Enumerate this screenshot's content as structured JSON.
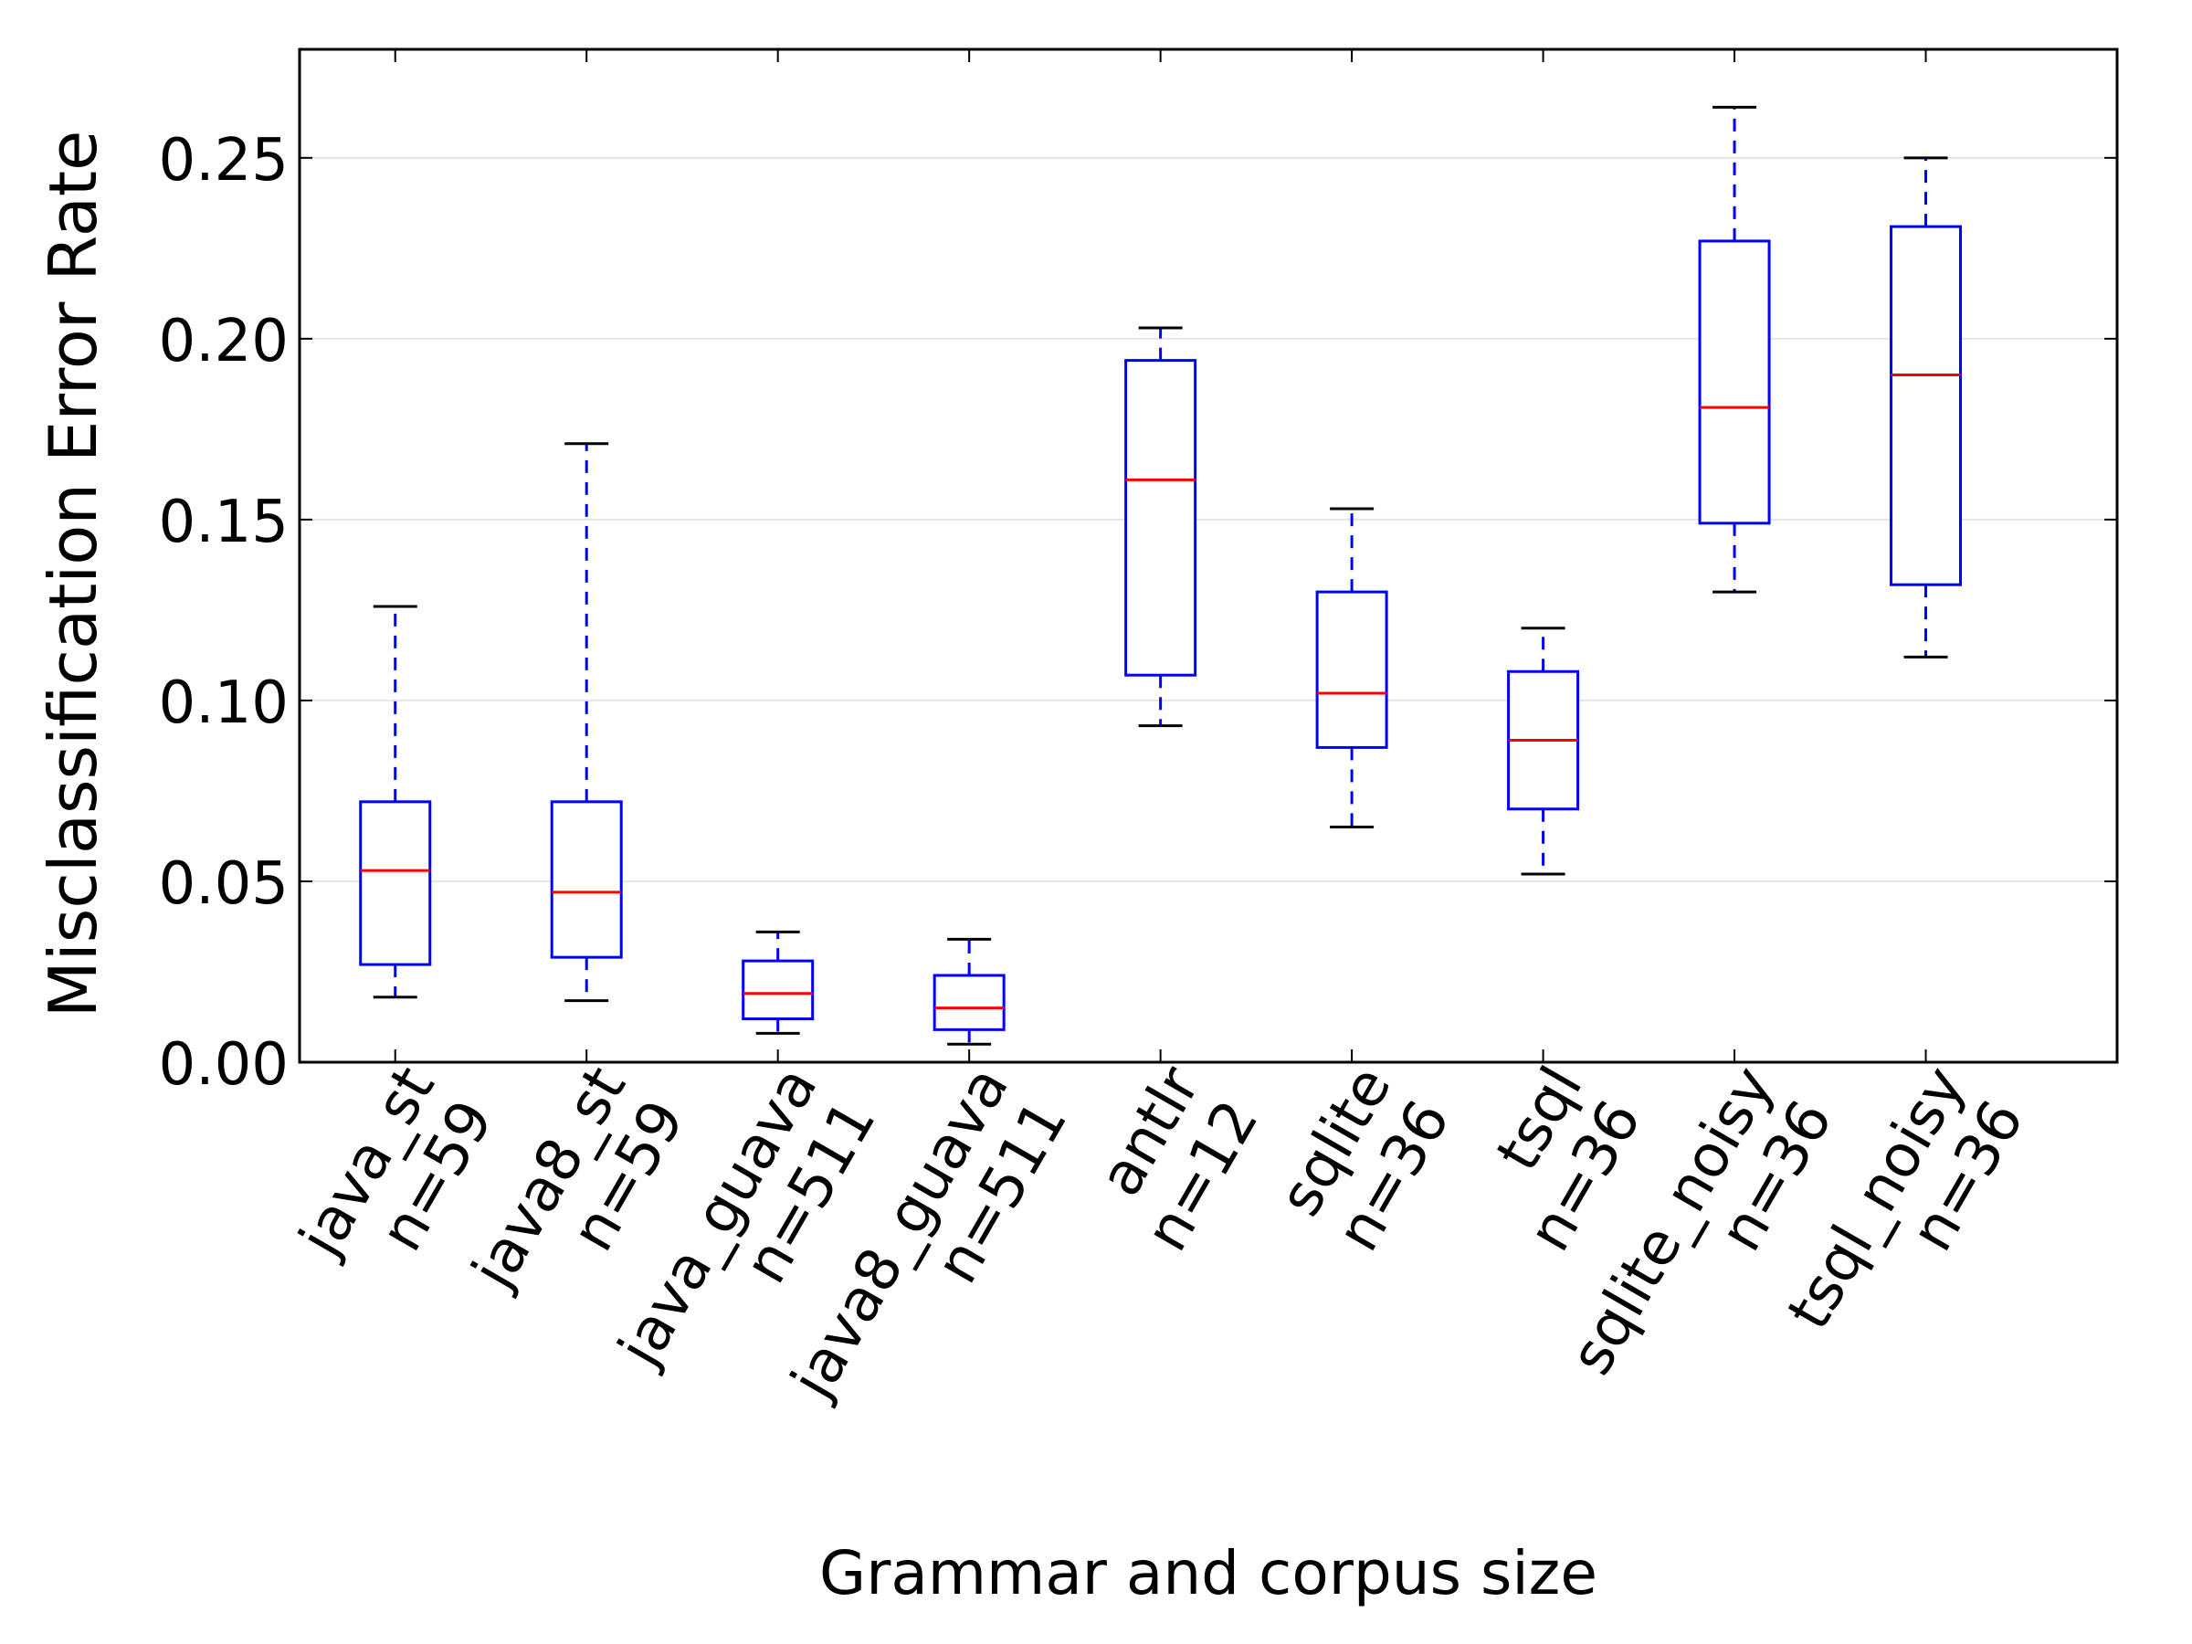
{
  "chart_data": {
    "type": "box",
    "title": "",
    "xlabel": "Grammar and corpus size",
    "ylabel": "Misclassification Error Rate",
    "ylim": [
      0,
      0.28
    ],
    "yticks": [
      0.0,
      0.05,
      0.1,
      0.15,
      0.2,
      0.25
    ],
    "ytick_labels": [
      "0.00",
      "0.05",
      "0.10",
      "0.15",
      "0.20",
      "0.25"
    ],
    "grid": "horizontal",
    "categories": [
      {
        "name": "java_st",
        "n_label": "n=59",
        "whisker_low": 0.018,
        "q1": 0.027,
        "median": 0.053,
        "q3": 0.072,
        "whisker_high": 0.126
      },
      {
        "name": "java8_st",
        "n_label": "n=59",
        "whisker_low": 0.017,
        "q1": 0.029,
        "median": 0.047,
        "q3": 0.072,
        "whisker_high": 0.171
      },
      {
        "name": "java_guava",
        "n_label": "n=511",
        "whisker_low": 0.008,
        "q1": 0.012,
        "median": 0.019,
        "q3": 0.028,
        "whisker_high": 0.036
      },
      {
        "name": "java8_guava",
        "n_label": "n=511",
        "whisker_low": 0.005,
        "q1": 0.009,
        "median": 0.015,
        "q3": 0.024,
        "whisker_high": 0.034
      },
      {
        "name": "antlr",
        "n_label": "n=12",
        "whisker_low": 0.093,
        "q1": 0.107,
        "median": 0.161,
        "q3": 0.194,
        "whisker_high": 0.203
      },
      {
        "name": "sqlite",
        "n_label": "n=36",
        "whisker_low": 0.065,
        "q1": 0.087,
        "median": 0.102,
        "q3": 0.13,
        "whisker_high": 0.153
      },
      {
        "name": "tsql",
        "n_label": "n=36",
        "whisker_low": 0.052,
        "q1": 0.07,
        "median": 0.089,
        "q3": 0.108,
        "whisker_high": 0.12
      },
      {
        "name": "sqlite_noisy",
        "n_label": "n=36",
        "whisker_low": 0.13,
        "q1": 0.149,
        "median": 0.181,
        "q3": 0.227,
        "whisker_high": 0.264
      },
      {
        "name": "tsql_noisy",
        "n_label": "n=36",
        "whisker_low": 0.112,
        "q1": 0.132,
        "median": 0.19,
        "q3": 0.231,
        "whisker_high": 0.25
      }
    ],
    "colors": {
      "box": "#0000ff",
      "median": "#ff0000",
      "whisker": "#0000ff",
      "cap": "#000000",
      "grid": "#e6e6e6",
      "axis": "#000000"
    }
  }
}
